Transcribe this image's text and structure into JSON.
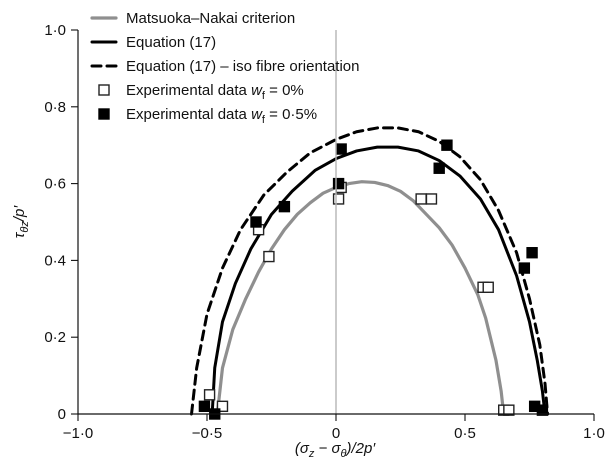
{
  "chart_data": {
    "type": "scatter",
    "xlabel": "(σz − σθ)/2p′",
    "ylabel": "τθz/p′",
    "xlim": [
      -1.0,
      1.0
    ],
    "ylim": [
      0.0,
      1.0
    ],
    "x_ticks": [
      {
        "value": -1.0,
        "label": "−1·0"
      },
      {
        "value": -0.5,
        "label": "−0·5"
      },
      {
        "value": 0.0,
        "label": "0"
      },
      {
        "value": 0.5,
        "label": "0·5"
      },
      {
        "value": 1.0,
        "label": "1·0"
      }
    ],
    "y_ticks": [
      {
        "value": 0.0,
        "label": "0"
      },
      {
        "value": 0.2,
        "label": "0·2"
      },
      {
        "value": 0.4,
        "label": "0·4"
      },
      {
        "value": 0.6,
        "label": "0·6"
      },
      {
        "value": 0.8,
        "label": "0·8"
      },
      {
        "value": 1.0,
        "label": "1·0"
      }
    ],
    "grid": false,
    "legend_position": "top-left",
    "series": [
      {
        "name": "Matsuoka–Nakai criterion",
        "kind": "line",
        "style": "solid",
        "color": "#8f8f8f",
        "points": [
          [
            -0.46,
            0.0
          ],
          [
            -0.44,
            0.12
          ],
          [
            -0.4,
            0.22
          ],
          [
            -0.35,
            0.3
          ],
          [
            -0.3,
            0.37
          ],
          [
            -0.25,
            0.43
          ],
          [
            -0.2,
            0.48
          ],
          [
            -0.15,
            0.52
          ],
          [
            -0.1,
            0.55
          ],
          [
            -0.05,
            0.575
          ],
          [
            0.0,
            0.59
          ],
          [
            0.05,
            0.6
          ],
          [
            0.1,
            0.605
          ],
          [
            0.15,
            0.603
          ],
          [
            0.2,
            0.595
          ],
          [
            0.25,
            0.58
          ],
          [
            0.3,
            0.555
          ],
          [
            0.35,
            0.52
          ],
          [
            0.4,
            0.485
          ],
          [
            0.45,
            0.44
          ],
          [
            0.5,
            0.38
          ],
          [
            0.55,
            0.31
          ],
          [
            0.58,
            0.25
          ],
          [
            0.62,
            0.14
          ],
          [
            0.64,
            0.06
          ],
          [
            0.65,
            0.0
          ]
        ]
      },
      {
        "name": "Equation (17)",
        "kind": "line",
        "style": "solid",
        "color": "#000000",
        "points": [
          [
            -0.48,
            0.0
          ],
          [
            -0.47,
            0.12
          ],
          [
            -0.44,
            0.24
          ],
          [
            -0.39,
            0.34
          ],
          [
            -0.33,
            0.43
          ],
          [
            -0.25,
            0.52
          ],
          [
            -0.17,
            0.58
          ],
          [
            -0.08,
            0.635
          ],
          [
            0.0,
            0.665
          ],
          [
            0.08,
            0.685
          ],
          [
            0.16,
            0.695
          ],
          [
            0.24,
            0.695
          ],
          [
            0.32,
            0.685
          ],
          [
            0.4,
            0.66
          ],
          [
            0.48,
            0.62
          ],
          [
            0.56,
            0.56
          ],
          [
            0.63,
            0.48
          ],
          [
            0.7,
            0.36
          ],
          [
            0.75,
            0.24
          ],
          [
            0.78,
            0.14
          ],
          [
            0.8,
            0.06
          ],
          [
            0.81,
            0.0
          ]
        ]
      },
      {
        "name": "Equation (17) – iso fibre orientation",
        "kind": "line",
        "style": "dashed",
        "color": "#000000",
        "points": [
          [
            -0.56,
            0.0
          ],
          [
            -0.54,
            0.12
          ],
          [
            -0.5,
            0.26
          ],
          [
            -0.44,
            0.38
          ],
          [
            -0.37,
            0.48
          ],
          [
            -0.28,
            0.57
          ],
          [
            -0.19,
            0.63
          ],
          [
            -0.1,
            0.68
          ],
          [
            0.0,
            0.715
          ],
          [
            0.08,
            0.735
          ],
          [
            0.16,
            0.745
          ],
          [
            0.24,
            0.745
          ],
          [
            0.32,
            0.735
          ],
          [
            0.4,
            0.71
          ],
          [
            0.48,
            0.67
          ],
          [
            0.56,
            0.61
          ],
          [
            0.63,
            0.53
          ],
          [
            0.7,
            0.42
          ],
          [
            0.75,
            0.3
          ],
          [
            0.79,
            0.18
          ],
          [
            0.81,
            0.08
          ],
          [
            0.82,
            0.0
          ]
        ]
      },
      {
        "name": "Experimental data wf = 0%",
        "kind": "scatter",
        "marker": "open-square",
        "color": "#222222",
        "points": [
          [
            -0.49,
            0.05
          ],
          [
            -0.44,
            0.02
          ],
          [
            -0.3,
            0.48
          ],
          [
            -0.26,
            0.41
          ],
          [
            0.01,
            0.56
          ],
          [
            0.02,
            0.59
          ],
          [
            0.33,
            0.56
          ],
          [
            0.37,
            0.56
          ],
          [
            0.57,
            0.33
          ],
          [
            0.59,
            0.33
          ],
          [
            0.65,
            0.01
          ],
          [
            0.67,
            0.01
          ]
        ]
      },
      {
        "name": "Experimental data wf = 0·5%",
        "kind": "scatter",
        "marker": "filled-square",
        "color": "#000000",
        "points": [
          [
            -0.51,
            0.02
          ],
          [
            -0.47,
            0.0
          ],
          [
            -0.31,
            0.5
          ],
          [
            -0.2,
            0.54
          ],
          [
            0.01,
            0.6
          ],
          [
            0.02,
            0.69
          ],
          [
            0.4,
            0.64
          ],
          [
            0.43,
            0.7
          ],
          [
            0.73,
            0.38
          ],
          [
            0.76,
            0.42
          ],
          [
            0.77,
            0.02
          ],
          [
            0.8,
            0.01
          ]
        ]
      }
    ]
  },
  "legend": {
    "items": [
      {
        "label": "Matsuoka–Nakai criterion"
      },
      {
        "label": "Equation (17)"
      },
      {
        "label": "Equation (17) – iso fibre orientation"
      },
      {
        "label_prefix": "Experimental data ",
        "label_var": "w",
        "label_sub": "f",
        "label_suffix": " = 0%"
      },
      {
        "label_prefix": "Experimental data ",
        "label_var": "w",
        "label_sub": "f",
        "label_suffix": " = 0·5%"
      }
    ]
  },
  "axis_labels": {
    "y_main": "τ",
    "y_sub": "θz",
    "y_tail": "/p′",
    "x_open": "(σ",
    "x_sub1": "z",
    "x_mid": " − σ",
    "x_sub2": "θ",
    "x_close": ")/2p′"
  }
}
